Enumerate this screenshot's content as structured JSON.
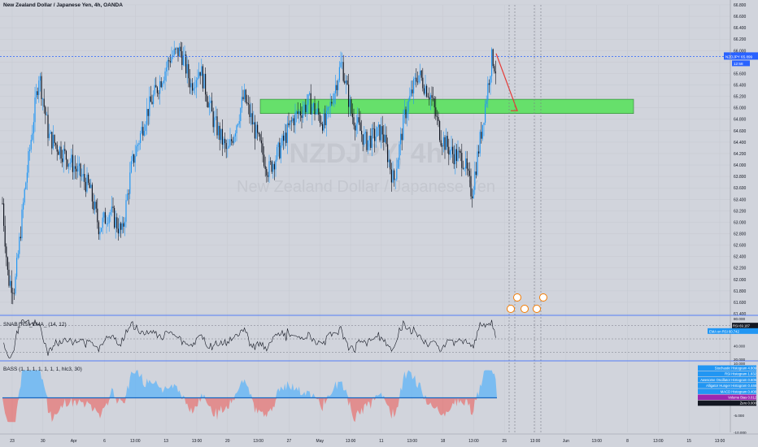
{
  "header": {
    "title": "New Zealand Dollar / Japanese Yen, 4h, OANDA"
  },
  "watermark": {
    "symbol": "NZDJPY, 4h",
    "name": "New Zealand Dollar / Japanese Yen"
  },
  "price_label": {
    "symbol": "NZDJPY",
    "value": "65.899",
    "countdown": "12:58"
  },
  "indicators": {
    "rsi": {
      "title": "SNAB_RSI_EMA_ (14, 12)",
      "tags": [
        {
          "label": "RSI",
          "value": "69.187"
        },
        {
          "label": "EMA on RSI",
          "value": "60.742"
        }
      ]
    },
    "bass": {
      "title": "BASS (1, 1, 1, 1, 1, 1, 1, hlc3, 30)",
      "tags": [
        {
          "label": "Stochastic Histogram",
          "value": "4.809",
          "color": "#2196f3"
        },
        {
          "label": "RSI Histogram",
          "value": "1.832",
          "color": "#2196f3"
        },
        {
          "label": "Awesome Oscillator Histogram",
          "value": "0.605",
          "color": "#2196f3"
        },
        {
          "label": "Alligator Hunger Histogram",
          "value": "0.446",
          "color": "#2196f3"
        },
        {
          "label": "MACD Histogram",
          "value": "0.408",
          "color": "#2196f3"
        },
        {
          "label": "Volume Bias",
          "value": "0.012",
          "color": "#9c27b0"
        },
        {
          "label": "Zero",
          "value": "0.000",
          "color": "#131722"
        }
      ]
    }
  },
  "chart_data": {
    "type": "candlestick",
    "symbol": "NZDJPY",
    "timeframe": "4h",
    "ylim": [
      61.4,
      66.8
    ],
    "y_ticks": [
      "66.800",
      "66.600",
      "66.400",
      "66.200",
      "66.000",
      "65.800",
      "65.600",
      "65.400",
      "65.200",
      "65.000",
      "64.800",
      "64.600",
      "64.400",
      "64.200",
      "64.000",
      "63.800",
      "63.600",
      "63.400",
      "63.200",
      "63.000",
      "62.800",
      "62.600",
      "62.400",
      "62.200",
      "62.000",
      "61.800",
      "61.600",
      "61.400"
    ],
    "x_ticks": [
      "23",
      "30",
      "Apr",
      "6",
      "13:00",
      "13",
      "13:00",
      "20",
      "13:00",
      "27",
      "May",
      "13:00",
      "11",
      "13:00",
      "18",
      "13:00",
      "25",
      "13:00",
      "Jun",
      "13:00",
      "8",
      "13:00",
      "15",
      "13:00"
    ],
    "horizontal_line": 65.899,
    "support_zone": [
      64.9,
      65.15
    ],
    "arrow": {
      "from": 65.95,
      "to": 64.95
    },
    "rsi_y_ticks": [
      "80.000",
      "60.000",
      "40.000",
      "20.000"
    ],
    "rsi_levels": [
      70,
      50,
      30
    ],
    "rsi_ylim": [
      20,
      80
    ],
    "bass_y_ticks": [
      "10.000",
      "5.000",
      "0.000",
      "-5.000",
      "-10.000"
    ],
    "bass_ylim": [
      -10,
      10
    ],
    "colors": {
      "up": "#2196f3",
      "down": "#131722",
      "zone": "#66e06b",
      "line": "#2962ff",
      "arrow": "#e53935"
    }
  }
}
